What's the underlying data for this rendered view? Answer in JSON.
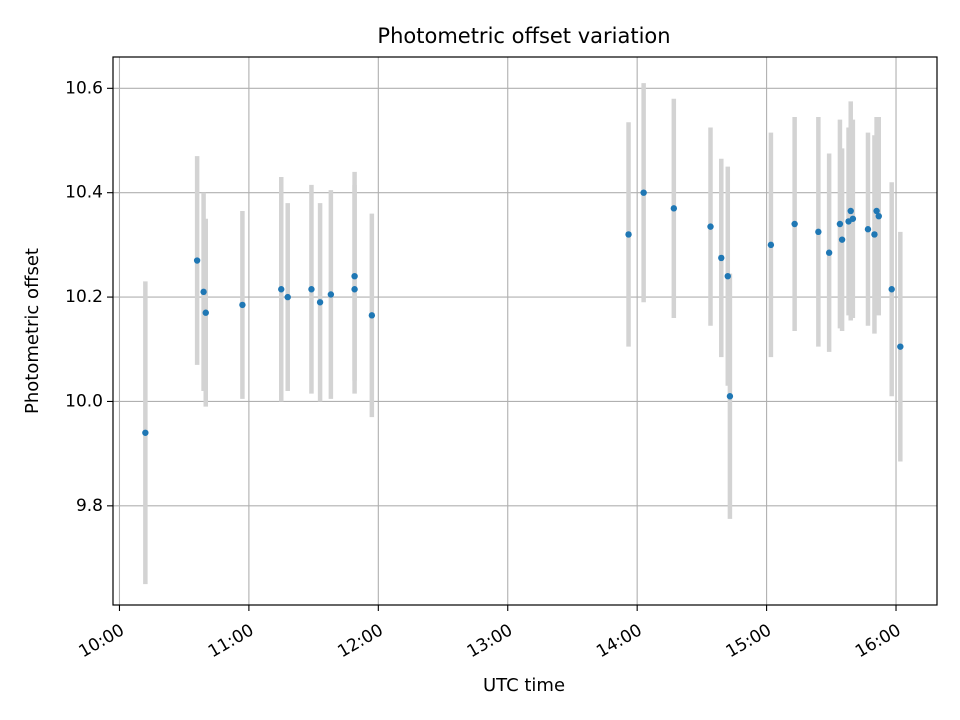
{
  "chart_data": {
    "type": "scatter",
    "title": "Photometric offset variation",
    "xlabel": "UTC time",
    "ylabel": "Photometric offset",
    "x_ticks": [
      "10:00",
      "11:00",
      "12:00",
      "13:00",
      "14:00",
      "15:00",
      "16:00"
    ],
    "y_ticks": [
      "9.8",
      "10.0",
      "10.2",
      "10.4",
      "10.6"
    ],
    "xlim": [
      "09:57",
      "16:19"
    ],
    "ylim": [
      9.61,
      10.66
    ],
    "grid": true,
    "colors": {
      "point": "#1f77b4",
      "errorbar": "#d3d3d3",
      "grid": "#b0b0b0"
    },
    "series": [
      {
        "points": [
          {
            "x": "10:12",
            "y": 9.94,
            "yerr": 0.29
          },
          {
            "x": "10:36",
            "y": 10.27,
            "yerr": 0.2
          },
          {
            "x": "10:39",
            "y": 10.21,
            "yerr": 0.19
          },
          {
            "x": "10:40",
            "y": 10.17,
            "yerr": 0.18
          },
          {
            "x": "10:57",
            "y": 10.185,
            "yerr": 0.18
          },
          {
            "x": "11:15",
            "y": 10.215,
            "yerr": 0.215
          },
          {
            "x": "11:18",
            "y": 10.2,
            "yerr": 0.18
          },
          {
            "x": "11:29",
            "y": 10.215,
            "yerr": 0.2
          },
          {
            "x": "11:33",
            "y": 10.19,
            "yerr": 0.19
          },
          {
            "x": "11:38",
            "y": 10.205,
            "yerr": 0.2
          },
          {
            "x": "11:49",
            "y": 10.215,
            "yerr": 0.2
          },
          {
            "x": "11:49",
            "y": 10.24,
            "yerr": 0.2
          },
          {
            "x": "11:57",
            "y": 10.165,
            "yerr": 0.195
          },
          {
            "x": "13:56",
            "y": 10.32,
            "yerr": 0.215
          },
          {
            "x": "14:03",
            "y": 10.4,
            "yerr": 0.21
          },
          {
            "x": "14:17",
            "y": 10.37,
            "yerr": 0.21
          },
          {
            "x": "14:34",
            "y": 10.335,
            "yerr": 0.19
          },
          {
            "x": "14:39",
            "y": 10.275,
            "yerr": 0.19
          },
          {
            "x": "14:42",
            "y": 10.24,
            "yerr": 0.21
          },
          {
            "x": "14:43",
            "y": 10.01,
            "yerr": 0.235
          },
          {
            "x": "15:02",
            "y": 10.3,
            "yerr": 0.215
          },
          {
            "x": "15:13",
            "y": 10.34,
            "yerr": 0.205
          },
          {
            "x": "15:24",
            "y": 10.325,
            "yerr": 0.22
          },
          {
            "x": "15:29",
            "y": 10.285,
            "yerr": 0.19
          },
          {
            "x": "15:34",
            "y": 10.34,
            "yerr": 0.2
          },
          {
            "x": "15:35",
            "y": 10.31,
            "yerr": 0.175
          },
          {
            "x": "15:38",
            "y": 10.345,
            "yerr": 0.18
          },
          {
            "x": "15:39",
            "y": 10.365,
            "yerr": 0.21
          },
          {
            "x": "15:40",
            "y": 10.35,
            "yerr": 0.19
          },
          {
            "x": "15:47",
            "y": 10.33,
            "yerr": 0.185
          },
          {
            "x": "15:50",
            "y": 10.32,
            "yerr": 0.19
          },
          {
            "x": "15:51",
            "y": 10.365,
            "yerr": 0.18
          },
          {
            "x": "15:52",
            "y": 10.355,
            "yerr": 0.19
          },
          {
            "x": "15:58",
            "y": 10.215,
            "yerr": 0.205
          },
          {
            "x": "16:02",
            "y": 10.105,
            "yerr": 0.22
          }
        ]
      }
    ]
  }
}
